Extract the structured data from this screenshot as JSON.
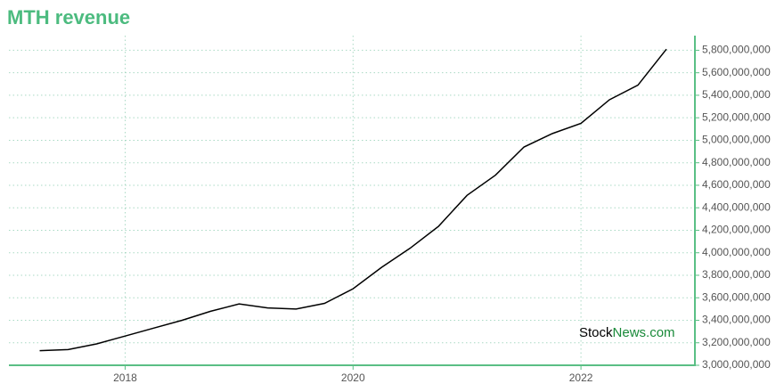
{
  "chart_data": {
    "type": "line",
    "title": "MTH revenue",
    "x": [
      2017.25,
      2017.5,
      2017.75,
      2018.0,
      2018.25,
      2018.5,
      2018.75,
      2019.0,
      2019.25,
      2019.5,
      2019.75,
      2020.0,
      2020.25,
      2020.5,
      2020.75,
      2021.0,
      2021.25,
      2021.5,
      2021.75,
      2022.0,
      2022.25,
      2022.5,
      2022.75
    ],
    "series": [
      {
        "name": "MTH revenue",
        "color": "#000000",
        "values": [
          3130000000,
          3140000000,
          3190000000,
          3260000000,
          3330000000,
          3400000000,
          3480000000,
          3545000000,
          3510000000,
          3500000000,
          3550000000,
          3680000000,
          3870000000,
          4040000000,
          4235000000,
          4510000000,
          4690000000,
          4940000000,
          5060000000,
          5150000000,
          5360000000,
          5490000000,
          5810000000
        ]
      }
    ],
    "xlim": [
      2016.98,
      2023.0
    ],
    "xticks": [
      2018,
      2020,
      2022
    ],
    "ylim": [
      3000000000,
      5930000000
    ],
    "yticks": [
      {
        "value": 3000000000,
        "label": "3,000,000,000"
      },
      {
        "value": 3200000000,
        "label": "3,200,000,000"
      },
      {
        "value": 3400000000,
        "label": "3,400,000,000"
      },
      {
        "value": 3600000000,
        "label": "3,600,000,000"
      },
      {
        "value": 3800000000,
        "label": "3,800,000,000"
      },
      {
        "value": 4000000000,
        "label": "4,000,000,000"
      },
      {
        "value": 4200000000,
        "label": "4,200,000,000"
      },
      {
        "value": 4400000000,
        "label": "4,400,000,000"
      },
      {
        "value": 4600000000,
        "label": "4,600,000,000"
      },
      {
        "value": 4800000000,
        "label": "4,800,000,000"
      },
      {
        "value": 5000000000,
        "label": "5,000,000,000"
      },
      {
        "value": 5200000000,
        "label": "5,200,000,000"
      },
      {
        "value": 5400000000,
        "label": "5,400,000,000"
      },
      {
        "value": 5600000000,
        "label": "5,600,000,000"
      },
      {
        "value": 5800000000,
        "label": "5,800,000,000"
      }
    ],
    "grid": true,
    "axis_color": "#5abf85",
    "watermark": [
      "Stock",
      "News.com"
    ]
  }
}
